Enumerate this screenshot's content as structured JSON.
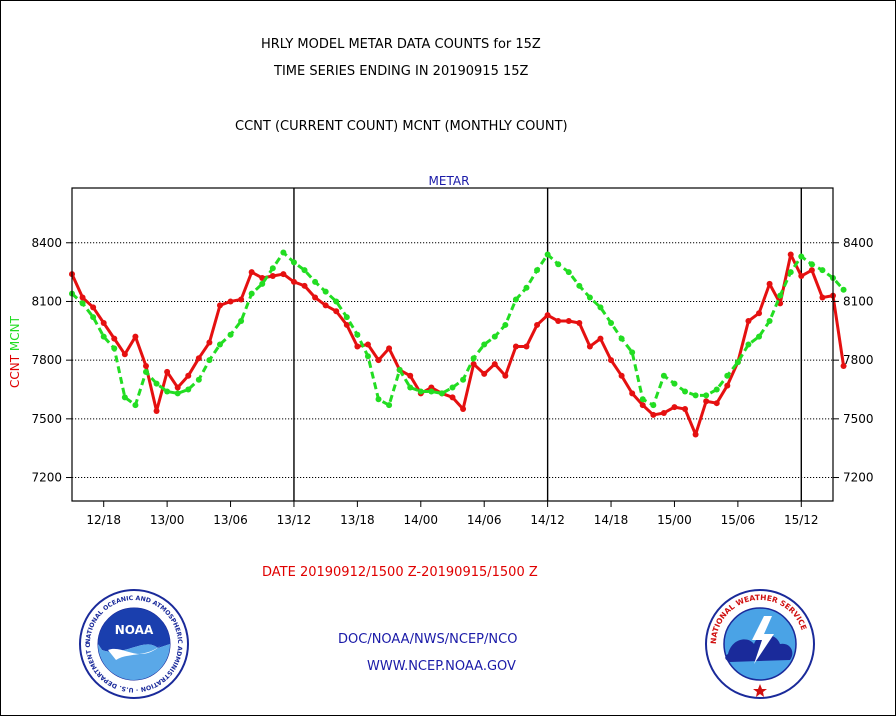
{
  "header": {
    "title_line1": "HRLY MODEL METAR DATA COUNTS for 15Z",
    "title_line2": "TIME SERIES ENDING IN 20190915 15Z",
    "subtitle": "CCNT (CURRENT COUNT) MCNT (MONTHLY COUNT)"
  },
  "footer": {
    "date_range": "DATE 20190912/1500 Z-20190915/1500 Z",
    "org_line": "DOC/NOAA/NWS/NCEP/NCO",
    "url_line": "WWW.NCEP.NOAA.GOV"
  },
  "logos": {
    "noaa": {
      "label": "NOAA",
      "ring_text": "NATIONAL OCEANIC AND ATMOSPHERIC ADMINISTRATION · U.S. DEPARTMENT OF COMMERCE ·"
    },
    "nws": {
      "ring_text": "NATIONAL WEATHER SERVICE"
    }
  },
  "colors": {
    "ccnt": "#e51010",
    "mcnt": "#22dd22",
    "text_blue": "#1a1aa8",
    "text_red": "#e00000"
  },
  "chart_data": {
    "type": "line",
    "title": "METAR",
    "ylabel_parts": [
      {
        "text": "CCNT",
        "color": "#e00000"
      },
      {
        "text": "MCNT",
        "color": "#22dd22"
      }
    ],
    "xlim": [
      0,
      72
    ],
    "ylim": [
      7080,
      8680
    ],
    "yticks": [
      7200,
      7500,
      7800,
      8100,
      8400
    ],
    "grid": true,
    "xticks": [
      {
        "x": 3,
        "label": "12/18"
      },
      {
        "x": 9,
        "label": "13/00"
      },
      {
        "x": 15,
        "label": "13/06"
      },
      {
        "x": 21,
        "label": "13/12"
      },
      {
        "x": 27,
        "label": "13/18"
      },
      {
        "x": 33,
        "label": "14/00"
      },
      {
        "x": 39,
        "label": "14/06"
      },
      {
        "x": 45,
        "label": "14/12"
      },
      {
        "x": 51,
        "label": "14/18"
      },
      {
        "x": 57,
        "label": "15/00"
      },
      {
        "x": 63,
        "label": "15/06"
      },
      {
        "x": 69,
        "label": "15/12"
      }
    ],
    "vlines": [
      21,
      45,
      69
    ],
    "series": [
      {
        "name": "CCNT",
        "color": "#e51010",
        "style": "solid",
        "values": [
          8240,
          8120,
          8070,
          7990,
          7910,
          7830,
          7920,
          7770,
          7540,
          7740,
          7660,
          7720,
          7810,
          7890,
          8080,
          8100,
          8110,
          8250,
          8220,
          8230,
          8240,
          8200,
          8180,
          8120,
          8080,
          8050,
          7980,
          7870,
          7880,
          7800,
          7860,
          7750,
          7720,
          7630,
          7660,
          7630,
          7610,
          7550,
          7780,
          7730,
          7780,
          7720,
          7870,
          7870,
          7980,
          8030,
          8000,
          8000,
          7990,
          7870,
          7910,
          7800,
          7720,
          7630,
          7570,
          7520,
          7530,
          7560,
          7550,
          7420,
          7590,
          7580,
          7670,
          7790,
          8000,
          8040,
          8190,
          8090,
          8340,
          8230,
          8260,
          8120,
          8130,
          7770
        ]
      },
      {
        "name": "MCNT",
        "color": "#22dd22",
        "style": "dashed",
        "values": [
          8140,
          8090,
          8020,
          7920,
          7860,
          7610,
          7570,
          7740,
          7680,
          7640,
          7630,
          7650,
          7700,
          7800,
          7880,
          7930,
          8000,
          8140,
          8190,
          8270,
          8350,
          8300,
          8260,
          8200,
          8150,
          8100,
          8020,
          7930,
          7820,
          7600,
          7570,
          7750,
          7660,
          7640,
          7640,
          7630,
          7660,
          7700,
          7810,
          7880,
          7920,
          7980,
          8110,
          8170,
          8260,
          8340,
          8290,
          8250,
          8180,
          8120,
          8070,
          7990,
          7910,
          7840,
          7600,
          7570,
          7720,
          7680,
          7640,
          7620,
          7620,
          7650,
          7720,
          7790,
          7880,
          7920,
          8000,
          8130,
          8250,
          8330,
          8290,
          8260,
          8220,
          8160
        ]
      }
    ]
  }
}
